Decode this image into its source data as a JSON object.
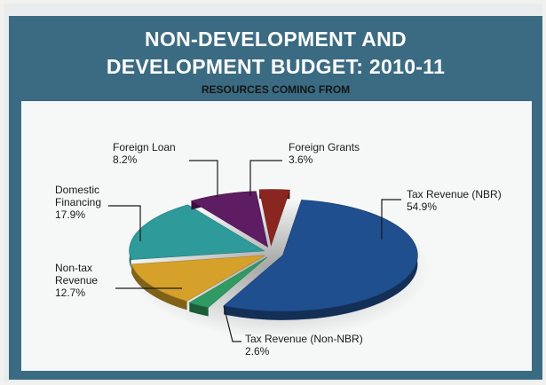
{
  "chart_data": {
    "type": "pie",
    "title": "NON-DEVELOPMENT AND",
    "title_line2": "DEVELOPMENT BUDGET: 2010-11",
    "subtitle": "RESOURCES COMING FROM",
    "slices": [
      {
        "label": "Tax Revenue (NBR)",
        "value": 54.9,
        "value_label": "54.9%",
        "color": "#1f4f8f"
      },
      {
        "label": "Tax Revenue (Non-NBR)",
        "value": 2.6,
        "value_label": "2.6%",
        "color": "#2f9a62"
      },
      {
        "label": "Non-tax Revenue",
        "value": 12.7,
        "value_label": "12.7%",
        "color": "#d6a12a"
      },
      {
        "label": "Domestic Financing",
        "value": 17.9,
        "value_label": "17.9%",
        "color": "#2e9a9a"
      },
      {
        "label": "Foreign Loan",
        "value": 8.2,
        "value_label": "8.2%",
        "color": "#5e1c62"
      },
      {
        "label": "Foreign Grants",
        "value": 3.6,
        "value_label": "3.6%",
        "color": "#8a2620"
      }
    ],
    "label_lines": {
      "tax_nbr": [
        "Tax Revenue (NBR)",
        "54.9%"
      ],
      "tax_non_nbr": [
        "Tax Revenue (Non-NBR)",
        "2.6%"
      ],
      "non_tax": [
        "Non-tax",
        "Revenue",
        "12.7%"
      ],
      "domestic": [
        "Domestic",
        "Financing",
        "17.9%"
      ],
      "foreign_loan": [
        "Foreign Loan",
        "8.2%"
      ],
      "foreign_grants": [
        "Foreign Grants",
        "3.6%"
      ]
    }
  }
}
